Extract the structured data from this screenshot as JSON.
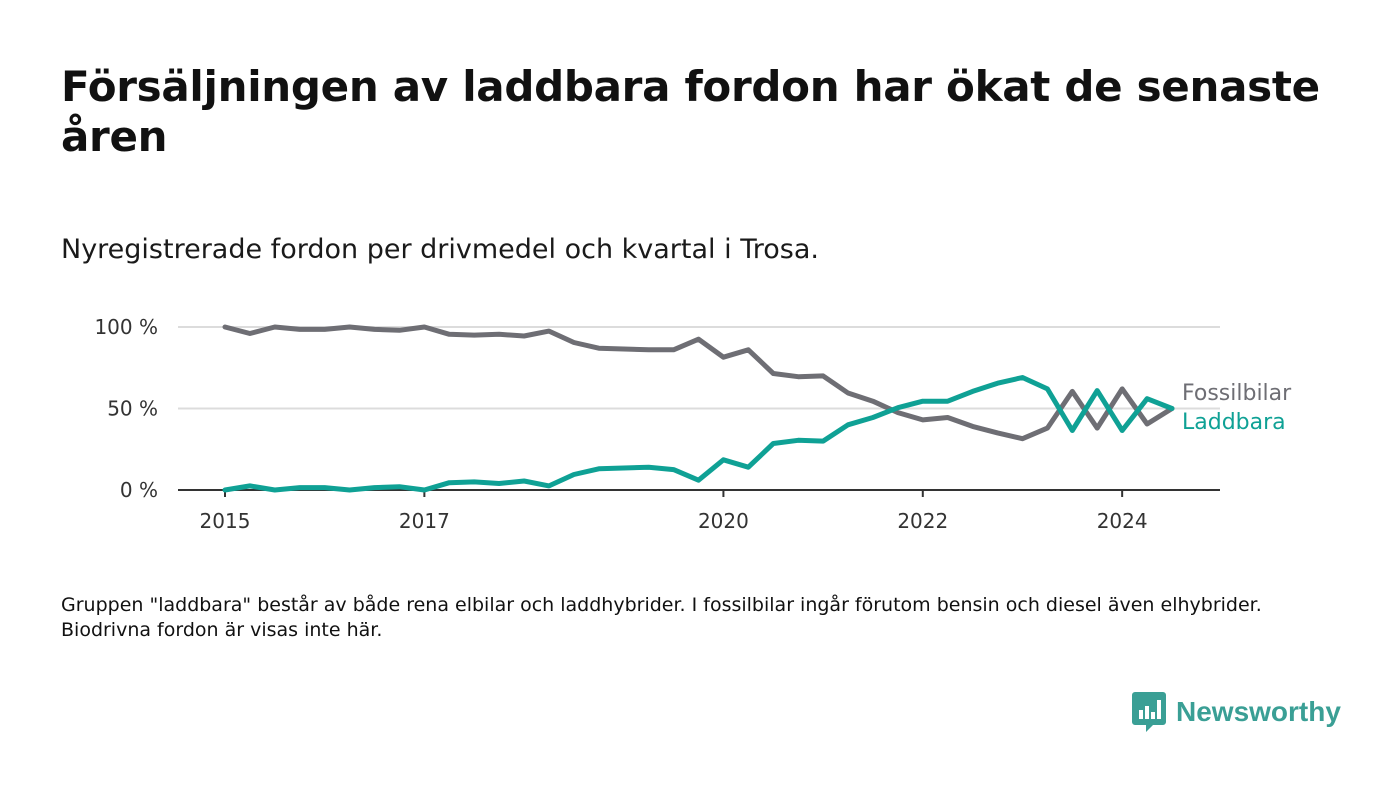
{
  "title": "Försäljningen av laddbara fordon har ökat de senaste åren",
  "subtitle": "Nyregistrerade fordon per drivmedel och kvartal i Trosa.",
  "footnote": "Gruppen \"laddbara\" består av både rena elbilar och laddhybrider. I fossilbilar ingår förutom bensin och diesel även elhybrider. Biodrivna fordon är visas inte här.",
  "brand": {
    "name": "Newsworthy",
    "icon": "newsworthy-logo-icon",
    "color": "#3a9f95"
  },
  "chart_data": {
    "type": "line",
    "x_label_years": [
      2015,
      2017,
      2020,
      2022,
      2024
    ],
    "y_ticks": [
      {
        "value": 0,
        "label": "0 %"
      },
      {
        "value": 50,
        "label": "50 %"
      },
      {
        "value": 100,
        "label": "100 %"
      }
    ],
    "ylim": [
      0,
      100
    ],
    "grid": true,
    "legend_placement": "right, end of lines",
    "x": [
      2015.0,
      2015.25,
      2015.5,
      2015.75,
      2016.0,
      2016.25,
      2016.5,
      2016.75,
      2017.0,
      2017.25,
      2017.5,
      2017.75,
      2018.0,
      2018.25,
      2018.5,
      2018.75,
      2019.0,
      2019.25,
      2019.5,
      2019.75,
      2020.0,
      2020.25,
      2020.5,
      2020.75,
      2021.0,
      2021.25,
      2021.5,
      2021.75,
      2022.0,
      2022.25,
      2022.5,
      2022.75,
      2023.0,
      2023.25,
      2023.5,
      2023.75,
      2024.0,
      2024.25,
      2024.5
    ],
    "series": [
      {
        "name": "Fossilbilar",
        "color": "#6e6e74",
        "values": [
          100,
          96,
          100,
          98.5,
          98.5,
          100,
          98.5,
          98,
          100,
          95.5,
          95,
          95.5,
          94.5,
          97.5,
          90.5,
          87,
          86.5,
          86,
          86,
          92.5,
          81.5,
          86,
          71.5,
          69.5,
          70,
          59.5,
          54.5,
          47.5,
          43,
          44.5,
          39,
          35,
          31.5,
          38,
          60.5,
          38,
          62,
          40.5,
          50
        ]
      },
      {
        "name": "Laddbara",
        "color": "#0fa195",
        "values": [
          0,
          2.5,
          0,
          1.5,
          1.5,
          0,
          1.5,
          2,
          0,
          4.5,
          5,
          4,
          5.5,
          2.5,
          9.5,
          13,
          13.5,
          14,
          12.5,
          6,
          18.5,
          14,
          28.5,
          30.5,
          30,
          40,
          44.5,
          50.5,
          54.5,
          54.5,
          60.5,
          65.5,
          69,
          62,
          36.5,
          61,
          36.5,
          56,
          50
        ]
      }
    ]
  }
}
